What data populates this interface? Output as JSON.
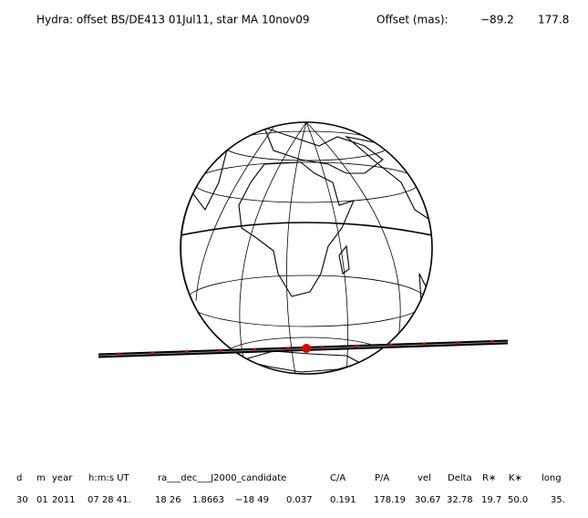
{
  "header": {
    "title": "Hydra: offset BS/DE413 01Jul11, star MA 10nov09",
    "offset_label": "Offset (mas):",
    "offset_values": [
      "−89.2",
      "177.8"
    ]
  },
  "table": {
    "columns": [
      "d",
      "m",
      "year",
      "h:m:s UT",
      "ra___dec___J2000_candidate",
      "C/A",
      "P/A",
      "vel",
      "Delta",
      "R∗",
      "K∗",
      "long"
    ],
    "row": [
      "30",
      "01",
      "2011",
      "07 28 41.",
      "18 26",
      "1.8663",
      "−18 49",
      "0.037",
      "0.191",
      "178.19",
      "30.67",
      "32.78",
      "19.7",
      "50.0",
      "35."
    ]
  }
}
